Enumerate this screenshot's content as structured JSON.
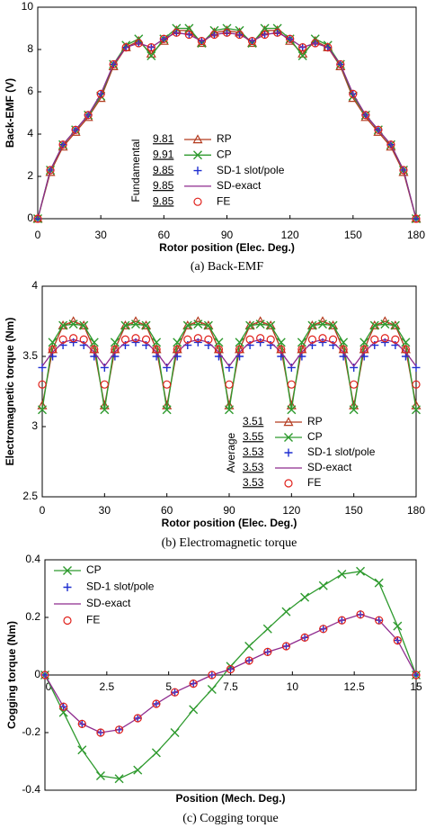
{
  "chart_data": [
    {
      "type": "line",
      "ylabel": "Back-EMF (V)",
      "xlabel": "Rotor position (Elec. Deg.)",
      "caption": "(a) Back-EMF",
      "xlim": [
        0,
        180
      ],
      "xticks": [
        0,
        30,
        60,
        90,
        120,
        150,
        180
      ],
      "ylim": [
        0,
        10
      ],
      "yticks": [
        0,
        2,
        4,
        6,
        8,
        10
      ],
      "legend_loc": "lower center",
      "legend_title": "Fundamental",
      "legend_values": [
        9.81,
        9.91,
        9.85,
        9.85,
        9.85
      ],
      "x": [
        0,
        6,
        12,
        18,
        24,
        30,
        36,
        42,
        48,
        54,
        60,
        66,
        72,
        78,
        84,
        90,
        96,
        102,
        108,
        114,
        120,
        126,
        132,
        138,
        144,
        150,
        156,
        162,
        168,
        174,
        180
      ],
      "series": [
        {
          "name": "RP",
          "color": "#b33a1e",
          "marker": "triangle",
          "line": true,
          "values": [
            0,
            2.2,
            3.4,
            4.1,
            4.8,
            5.7,
            7.2,
            8.1,
            8.4,
            7.8,
            8.4,
            8.9,
            8.9,
            8.3,
            8.8,
            8.9,
            8.8,
            8.3,
            8.9,
            8.9,
            8.4,
            7.8,
            8.4,
            8.1,
            7.2,
            5.7,
            4.8,
            4.1,
            3.4,
            2.2,
            0
          ]
        },
        {
          "name": "CP",
          "color": "#2e9a2e",
          "marker": "x",
          "line": true,
          "values": [
            0,
            2.3,
            3.5,
            4.2,
            4.9,
            5.8,
            7.3,
            8.2,
            8.5,
            7.7,
            8.5,
            9.0,
            9.0,
            8.3,
            8.9,
            9.0,
            8.9,
            8.3,
            9.0,
            9.0,
            8.5,
            7.7,
            8.5,
            8.2,
            7.3,
            5.8,
            4.9,
            4.2,
            3.5,
            2.3,
            0
          ]
        },
        {
          "name": "SD-1 slot/pole",
          "color": "#1f2fd0",
          "marker": "plus",
          "line": false,
          "values": [
            0,
            2.3,
            3.5,
            4.2,
            4.9,
            5.9,
            7.3,
            8.1,
            8.3,
            8.1,
            8.5,
            8.8,
            8.7,
            8.4,
            8.7,
            8.8,
            8.7,
            8.4,
            8.7,
            8.8,
            8.5,
            8.1,
            8.3,
            8.1,
            7.3,
            5.9,
            4.9,
            4.2,
            3.5,
            2.3,
            0
          ]
        },
        {
          "name": "SD-exact",
          "color": "#8e2a8e",
          "marker": "none",
          "line": true,
          "values": [
            0,
            2.3,
            3.5,
            4.2,
            4.9,
            5.9,
            7.3,
            8.1,
            8.3,
            8.1,
            8.5,
            8.8,
            8.7,
            8.4,
            8.7,
            8.8,
            8.7,
            8.4,
            8.7,
            8.8,
            8.5,
            8.1,
            8.3,
            8.1,
            7.3,
            5.9,
            4.9,
            4.2,
            3.5,
            2.3,
            0
          ]
        },
        {
          "name": "FE",
          "color": "#e0201a",
          "marker": "circle",
          "line": false,
          "values": [
            0,
            2.3,
            3.5,
            4.2,
            4.9,
            5.9,
            7.3,
            8.1,
            8.3,
            8.1,
            8.5,
            8.8,
            8.7,
            8.4,
            8.7,
            8.8,
            8.7,
            8.4,
            8.7,
            8.8,
            8.5,
            8.1,
            8.3,
            8.1,
            7.3,
            5.9,
            4.9,
            4.2,
            3.5,
            2.3,
            0
          ]
        }
      ]
    },
    {
      "type": "line",
      "ylabel": "Electromagnetic torque (Nm)",
      "xlabel": "Rotor position (Elec. Deg.)",
      "caption": "(b) Electromagnetic torque",
      "xlim": [
        0,
        180
      ],
      "xticks": [
        0,
        30,
        60,
        90,
        120,
        150,
        180
      ],
      "ylim": [
        2.5,
        4
      ],
      "yticks": [
        2.5,
        3,
        3.5,
        4
      ],
      "legend_loc": "lower right",
      "legend_title": "Average",
      "legend_values": [
        3.51,
        3.55,
        3.53,
        3.53,
        3.53
      ],
      "x": [
        0,
        5,
        10,
        15,
        20,
        25,
        30,
        35,
        40,
        45,
        50,
        55,
        60,
        65,
        70,
        75,
        80,
        85,
        90,
        95,
        100,
        105,
        110,
        115,
        120,
        125,
        130,
        135,
        140,
        145,
        150,
        155,
        160,
        165,
        170,
        175,
        180
      ],
      "series": [
        {
          "name": "RP",
          "color": "#b33a1e",
          "marker": "triangle",
          "line": true,
          "values": [
            3.15,
            3.55,
            3.72,
            3.75,
            3.72,
            3.55,
            3.15,
            3.55,
            3.72,
            3.75,
            3.72,
            3.55,
            3.15,
            3.55,
            3.72,
            3.75,
            3.72,
            3.55,
            3.15,
            3.55,
            3.72,
            3.75,
            3.72,
            3.55,
            3.15,
            3.55,
            3.72,
            3.75,
            3.72,
            3.55,
            3.15,
            3.55,
            3.72,
            3.75,
            3.72,
            3.55,
            3.15
          ]
        },
        {
          "name": "CP",
          "color": "#2e9a2e",
          "marker": "x",
          "line": true,
          "values": [
            3.12,
            3.6,
            3.72,
            3.73,
            3.72,
            3.6,
            3.12,
            3.6,
            3.72,
            3.73,
            3.72,
            3.6,
            3.12,
            3.6,
            3.72,
            3.73,
            3.72,
            3.6,
            3.12,
            3.6,
            3.72,
            3.73,
            3.72,
            3.6,
            3.12,
            3.6,
            3.72,
            3.73,
            3.72,
            3.6,
            3.12,
            3.6,
            3.72,
            3.73,
            3.72,
            3.6,
            3.12
          ]
        },
        {
          "name": "SD-1 slot/pole",
          "color": "#1f2fd0",
          "marker": "plus",
          "line": false,
          "values": [
            3.42,
            3.5,
            3.58,
            3.6,
            3.58,
            3.5,
            3.42,
            3.5,
            3.58,
            3.6,
            3.58,
            3.5,
            3.42,
            3.5,
            3.58,
            3.6,
            3.58,
            3.5,
            3.42,
            3.5,
            3.58,
            3.6,
            3.58,
            3.5,
            3.42,
            3.5,
            3.58,
            3.6,
            3.58,
            3.5,
            3.42,
            3.5,
            3.58,
            3.6,
            3.58,
            3.5,
            3.42
          ]
        },
        {
          "name": "SD-exact",
          "color": "#8e2a8e",
          "marker": "none",
          "line": true,
          "values": [
            3.43,
            3.53,
            3.6,
            3.62,
            3.6,
            3.53,
            3.43,
            3.53,
            3.6,
            3.62,
            3.6,
            3.53,
            3.43,
            3.53,
            3.6,
            3.62,
            3.6,
            3.53,
            3.43,
            3.53,
            3.6,
            3.62,
            3.6,
            3.53,
            3.43,
            3.53,
            3.6,
            3.62,
            3.6,
            3.53,
            3.43,
            3.53,
            3.6,
            3.62,
            3.6,
            3.53,
            3.43
          ]
        },
        {
          "name": "FE",
          "color": "#e0201a",
          "marker": "circle",
          "line": false,
          "values": [
            3.3,
            3.55,
            3.62,
            3.63,
            3.62,
            3.55,
            3.3,
            3.55,
            3.62,
            3.63,
            3.62,
            3.55,
            3.3,
            3.55,
            3.62,
            3.63,
            3.62,
            3.55,
            3.3,
            3.55,
            3.62,
            3.63,
            3.62,
            3.55,
            3.3,
            3.55,
            3.62,
            3.63,
            3.62,
            3.55,
            3.3,
            3.55,
            3.62,
            3.63,
            3.62,
            3.55,
            3.3
          ]
        }
      ]
    },
    {
      "type": "line",
      "ylabel": "Cogging torque (Nm)",
      "xlabel": "Position (Mech. Deg.)",
      "caption": "(c) Cogging torque",
      "xlim": [
        0,
        15
      ],
      "xticks": [
        0,
        2.5,
        5,
        7.5,
        10,
        12.5,
        15
      ],
      "ylim": [
        -0.4,
        0.4
      ],
      "yticks": [
        -0.4,
        -0.2,
        0,
        0.2,
        0.4
      ],
      "legend_loc": "upper left",
      "x": [
        0,
        0.75,
        1.5,
        2.25,
        3,
        3.75,
        4.5,
        5.25,
        6,
        6.75,
        7.5,
        8.25,
        9,
        9.75,
        10.5,
        11.25,
        12,
        12.75,
        13.5,
        14.25,
        15
      ],
      "series": [
        {
          "name": "CP",
          "color": "#2e9a2e",
          "marker": "x",
          "line": true,
          "values": [
            0,
            -0.13,
            -0.26,
            -0.35,
            -0.36,
            -0.33,
            -0.27,
            -0.2,
            -0.12,
            -0.05,
            0.03,
            0.1,
            0.16,
            0.22,
            0.27,
            0.31,
            0.35,
            0.36,
            0.32,
            0.17,
            0
          ]
        },
        {
          "name": "SD-1 slot/pole",
          "color": "#1f2fd0",
          "marker": "plus",
          "line": false,
          "values": [
            0,
            -0.11,
            -0.17,
            -0.2,
            -0.19,
            -0.15,
            -0.1,
            -0.06,
            -0.03,
            0,
            0.02,
            0.05,
            0.08,
            0.1,
            0.13,
            0.16,
            0.19,
            0.21,
            0.19,
            0.12,
            0
          ]
        },
        {
          "name": "SD-exact",
          "color": "#8e2a8e",
          "marker": "none",
          "line": true,
          "values": [
            0,
            -0.11,
            -0.17,
            -0.2,
            -0.19,
            -0.15,
            -0.1,
            -0.06,
            -0.03,
            0,
            0.02,
            0.05,
            0.08,
            0.1,
            0.13,
            0.16,
            0.19,
            0.21,
            0.19,
            0.12,
            0
          ]
        },
        {
          "name": "FE",
          "color": "#e0201a",
          "marker": "circle",
          "line": false,
          "values": [
            0,
            -0.11,
            -0.17,
            -0.2,
            -0.19,
            -0.15,
            -0.1,
            -0.06,
            -0.03,
            0,
            0.02,
            0.05,
            0.08,
            0.1,
            0.13,
            0.16,
            0.19,
            0.21,
            0.19,
            0.12,
            0
          ]
        }
      ]
    }
  ]
}
